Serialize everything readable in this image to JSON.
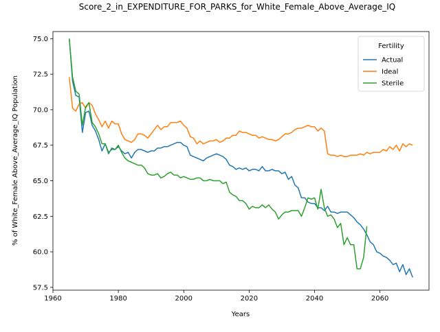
{
  "chart_data": {
    "type": "line",
    "title": "Score_2_in_EXPENDITURE_FOR_PARKS_for_White_Female_Above_Average_IQ",
    "xlabel": "Years",
    "ylabel": "% of White_Female Above_Average_IQ Population",
    "xlim": [
      1960,
      2075
    ],
    "ylim": [
      57.3,
      75.5
    ],
    "xticks": [
      1960,
      1980,
      2000,
      2020,
      2040,
      2060
    ],
    "yticks": [
      57.5,
      60.0,
      62.5,
      65.0,
      67.5,
      70.0,
      72.5,
      75.0
    ],
    "legend": {
      "title": "Fertility",
      "placement": "top-right"
    },
    "grid": false,
    "series": [
      {
        "name": "Actual",
        "color": "#1f77b4",
        "points": [
          [
            1965,
            75.0
          ],
          [
            1966,
            72.0
          ],
          [
            1967,
            71.0
          ],
          [
            1968,
            70.9
          ],
          [
            1969,
            68.4
          ],
          [
            1970,
            69.8
          ],
          [
            1971,
            69.9
          ],
          [
            1972,
            68.9
          ],
          [
            1973,
            68.5
          ],
          [
            1974,
            67.9
          ],
          [
            1975,
            67.1
          ],
          [
            1976,
            67.6
          ],
          [
            1977,
            66.9
          ],
          [
            1978,
            67.3
          ],
          [
            1979,
            67.2
          ],
          [
            1980,
            67.4
          ],
          [
            1981,
            67.1
          ],
          [
            1982,
            66.9
          ],
          [
            1983,
            67.0
          ],
          [
            1984,
            66.6
          ],
          [
            1985,
            67.0
          ],
          [
            1986,
            67.2
          ],
          [
            1987,
            67.2
          ],
          [
            1988,
            67.1
          ],
          [
            1989,
            67.0
          ],
          [
            1990,
            67.1
          ],
          [
            1991,
            67.1
          ],
          [
            1992,
            67.3
          ],
          [
            1993,
            67.3
          ],
          [
            1994,
            67.4
          ],
          [
            1995,
            67.4
          ],
          [
            1996,
            67.5
          ],
          [
            1997,
            67.6
          ],
          [
            1998,
            67.7
          ],
          [
            1999,
            67.7
          ],
          [
            2000,
            67.5
          ],
          [
            2001,
            67.4
          ],
          [
            2002,
            66.8
          ],
          [
            2003,
            66.7
          ],
          [
            2004,
            66.6
          ],
          [
            2005,
            66.5
          ],
          [
            2006,
            66.4
          ],
          [
            2007,
            66.6
          ],
          [
            2008,
            66.7
          ],
          [
            2009,
            66.8
          ],
          [
            2010,
            66.9
          ],
          [
            2011,
            66.8
          ],
          [
            2012,
            66.7
          ],
          [
            2013,
            66.5
          ],
          [
            2014,
            66.1
          ],
          [
            2015,
            66.0
          ],
          [
            2016,
            65.8
          ],
          [
            2017,
            65.9
          ],
          [
            2018,
            65.8
          ],
          [
            2019,
            65.9
          ],
          [
            2020,
            65.7
          ],
          [
            2021,
            65.8
          ],
          [
            2022,
            65.8
          ],
          [
            2023,
            65.7
          ],
          [
            2024,
            66.0
          ],
          [
            2025,
            65.7
          ],
          [
            2026,
            65.7
          ],
          [
            2027,
            65.8
          ],
          [
            2028,
            65.7
          ],
          [
            2029,
            65.7
          ],
          [
            2030,
            65.5
          ],
          [
            2031,
            65.6
          ],
          [
            2032,
            65.1
          ],
          [
            2033,
            65.3
          ],
          [
            2034,
            64.7
          ],
          [
            2035,
            64.5
          ],
          [
            2036,
            63.8
          ],
          [
            2037,
            63.8
          ],
          [
            2038,
            63.5
          ],
          [
            2039,
            63.4
          ],
          [
            2040,
            63.4
          ],
          [
            2041,
            63.1
          ],
          [
            2042,
            63.1
          ],
          [
            2043,
            62.9
          ],
          [
            2044,
            63.2
          ],
          [
            2045,
            62.8
          ],
          [
            2046,
            62.8
          ],
          [
            2047,
            62.7
          ],
          [
            2048,
            62.8
          ],
          [
            2049,
            62.8
          ],
          [
            2050,
            62.8
          ],
          [
            2051,
            62.6
          ],
          [
            2052,
            62.4
          ],
          [
            2053,
            62.1
          ],
          [
            2054,
            61.9
          ],
          [
            2055,
            61.6
          ],
          [
            2056,
            61.2
          ],
          [
            2057,
            60.7
          ],
          [
            2058,
            60.5
          ],
          [
            2059,
            60.0
          ],
          [
            2060,
            59.9
          ],
          [
            2061,
            59.7
          ],
          [
            2062,
            59.6
          ],
          [
            2063,
            59.4
          ],
          [
            2064,
            59.1
          ],
          [
            2065,
            59.2
          ],
          [
            2066,
            58.6
          ],
          [
            2067,
            59.1
          ],
          [
            2068,
            58.4
          ],
          [
            2069,
            58.8
          ],
          [
            2070,
            58.2
          ]
        ]
      },
      {
        "name": "Ideal",
        "color": "#ff7f0e",
        "points": [
          [
            1965,
            72.3
          ],
          [
            1966,
            70.1
          ],
          [
            1967,
            69.9
          ],
          [
            1968,
            70.4
          ],
          [
            1969,
            70.5
          ],
          [
            1970,
            70.1
          ],
          [
            1971,
            70.5
          ],
          [
            1972,
            70.3
          ],
          [
            1973,
            69.7
          ],
          [
            1974,
            69.3
          ],
          [
            1975,
            68.8
          ],
          [
            1976,
            69.2
          ],
          [
            1977,
            68.7
          ],
          [
            1978,
            69.2
          ],
          [
            1979,
            69.0
          ],
          [
            1980,
            69.0
          ],
          [
            1981,
            68.3
          ],
          [
            1982,
            67.9
          ],
          [
            1983,
            67.8
          ],
          [
            1984,
            67.7
          ],
          [
            1985,
            67.9
          ],
          [
            1986,
            68.3
          ],
          [
            1987,
            68.3
          ],
          [
            1988,
            68.2
          ],
          [
            1989,
            68.0
          ],
          [
            1990,
            68.3
          ],
          [
            1991,
            68.6
          ],
          [
            1992,
            68.9
          ],
          [
            1993,
            68.6
          ],
          [
            1994,
            68.8
          ],
          [
            1995,
            68.8
          ],
          [
            1996,
            69.1
          ],
          [
            1997,
            69.1
          ],
          [
            1998,
            69.1
          ],
          [
            1999,
            69.2
          ],
          [
            2000,
            68.9
          ],
          [
            2001,
            68.7
          ],
          [
            2002,
            68.1
          ],
          [
            2003,
            68.0
          ],
          [
            2004,
            67.6
          ],
          [
            2005,
            67.8
          ],
          [
            2006,
            67.6
          ],
          [
            2007,
            67.7
          ],
          [
            2008,
            67.8
          ],
          [
            2009,
            67.8
          ],
          [
            2010,
            67.9
          ],
          [
            2011,
            67.7
          ],
          [
            2012,
            67.8
          ],
          [
            2013,
            68.0
          ],
          [
            2014,
            68.0
          ],
          [
            2015,
            68.2
          ],
          [
            2016,
            68.2
          ],
          [
            2017,
            68.5
          ],
          [
            2018,
            68.4
          ],
          [
            2019,
            68.4
          ],
          [
            2020,
            68.3
          ],
          [
            2021,
            68.2
          ],
          [
            2022,
            68.2
          ],
          [
            2023,
            68.0
          ],
          [
            2024,
            68.1
          ],
          [
            2025,
            68.0
          ],
          [
            2026,
            67.9
          ],
          [
            2027,
            67.9
          ],
          [
            2028,
            67.8
          ],
          [
            2029,
            67.9
          ],
          [
            2030,
            68.1
          ],
          [
            2031,
            68.3
          ],
          [
            2032,
            68.3
          ],
          [
            2033,
            68.4
          ],
          [
            2034,
            68.6
          ],
          [
            2035,
            68.7
          ],
          [
            2036,
            68.7
          ],
          [
            2037,
            68.8
          ],
          [
            2038,
            68.9
          ],
          [
            2039,
            68.8
          ],
          [
            2040,
            68.8
          ],
          [
            2041,
            68.5
          ],
          [
            2042,
            68.7
          ],
          [
            2043,
            68.5
          ],
          [
            2044,
            66.9
          ],
          [
            2045,
            66.8
          ],
          [
            2046,
            66.8
          ],
          [
            2047,
            66.7
          ],
          [
            2048,
            66.8
          ],
          [
            2049,
            66.7
          ],
          [
            2050,
            66.7
          ],
          [
            2051,
            66.8
          ],
          [
            2052,
            66.8
          ],
          [
            2053,
            66.8
          ],
          [
            2054,
            66.9
          ],
          [
            2055,
            66.8
          ],
          [
            2056,
            67.0
          ],
          [
            2057,
            66.9
          ],
          [
            2058,
            67.0
          ],
          [
            2059,
            67.0
          ],
          [
            2060,
            67.0
          ],
          [
            2061,
            67.2
          ],
          [
            2062,
            67.1
          ],
          [
            2063,
            67.4
          ],
          [
            2064,
            67.2
          ],
          [
            2065,
            67.5
          ],
          [
            2066,
            67.1
          ],
          [
            2067,
            67.6
          ],
          [
            2068,
            67.4
          ],
          [
            2069,
            67.6
          ],
          [
            2070,
            67.5
          ]
        ]
      },
      {
        "name": "Sterile",
        "color": "#2ca02c",
        "points": [
          [
            1965,
            75.0
          ],
          [
            1966,
            72.3
          ],
          [
            1967,
            71.3
          ],
          [
            1968,
            71.1
          ],
          [
            1969,
            68.9
          ],
          [
            1970,
            70.2
          ],
          [
            1971,
            70.5
          ],
          [
            1972,
            69.1
          ],
          [
            1973,
            68.8
          ],
          [
            1974,
            68.3
          ],
          [
            1975,
            67.6
          ],
          [
            1976,
            67.6
          ],
          [
            1977,
            67.0
          ],
          [
            1978,
            67.2
          ],
          [
            1979,
            67.2
          ],
          [
            1980,
            67.5
          ],
          [
            1981,
            67.0
          ],
          [
            1982,
            66.6
          ],
          [
            1983,
            66.4
          ],
          [
            1984,
            66.3
          ],
          [
            1985,
            66.2
          ],
          [
            1986,
            66.1
          ],
          [
            1987,
            66.1
          ],
          [
            1988,
            65.9
          ],
          [
            1989,
            65.5
          ],
          [
            1990,
            65.4
          ],
          [
            1991,
            65.4
          ],
          [
            1992,
            65.5
          ],
          [
            1993,
            65.2
          ],
          [
            1994,
            65.3
          ],
          [
            1995,
            65.5
          ],
          [
            1996,
            65.6
          ],
          [
            1997,
            65.4
          ],
          [
            1998,
            65.4
          ],
          [
            1999,
            65.2
          ],
          [
            2000,
            65.3
          ],
          [
            2001,
            65.2
          ],
          [
            2002,
            65.1
          ],
          [
            2003,
            65.1
          ],
          [
            2004,
            65.2
          ],
          [
            2005,
            65.2
          ],
          [
            2006,
            65.0
          ],
          [
            2007,
            65.0
          ],
          [
            2008,
            65.1
          ],
          [
            2009,
            65.0
          ],
          [
            2010,
            65.0
          ],
          [
            2011,
            65.0
          ],
          [
            2012,
            64.8
          ],
          [
            2013,
            64.9
          ],
          [
            2014,
            64.2
          ],
          [
            2015,
            64.0
          ],
          [
            2016,
            63.9
          ],
          [
            2017,
            63.6
          ],
          [
            2018,
            63.6
          ],
          [
            2019,
            63.4
          ],
          [
            2020,
            63.0
          ],
          [
            2021,
            63.2
          ],
          [
            2022,
            63.1
          ],
          [
            2023,
            63.1
          ],
          [
            2024,
            63.3
          ],
          [
            2025,
            63.1
          ],
          [
            2026,
            63.3
          ],
          [
            2027,
            63.0
          ],
          [
            2028,
            62.8
          ],
          [
            2029,
            62.3
          ],
          [
            2030,
            62.6
          ],
          [
            2031,
            62.8
          ],
          [
            2032,
            62.8
          ],
          [
            2033,
            62.9
          ],
          [
            2034,
            62.9
          ],
          [
            2035,
            62.9
          ],
          [
            2036,
            62.5
          ],
          [
            2037,
            63.1
          ],
          [
            2038,
            63.8
          ],
          [
            2039,
            63.7
          ],
          [
            2040,
            63.8
          ],
          [
            2041,
            63.0
          ],
          [
            2042,
            64.4
          ],
          [
            2043,
            63.1
          ],
          [
            2044,
            62.5
          ],
          [
            2045,
            62.6
          ],
          [
            2046,
            62.3
          ],
          [
            2047,
            61.7
          ],
          [
            2048,
            62.0
          ],
          [
            2049,
            60.5
          ],
          [
            2050,
            61.0
          ],
          [
            2051,
            60.5
          ],
          [
            2052,
            60.5
          ],
          [
            2053,
            58.8
          ],
          [
            2054,
            58.8
          ],
          [
            2055,
            59.6
          ],
          [
            2056,
            61.8
          ]
        ]
      }
    ]
  }
}
